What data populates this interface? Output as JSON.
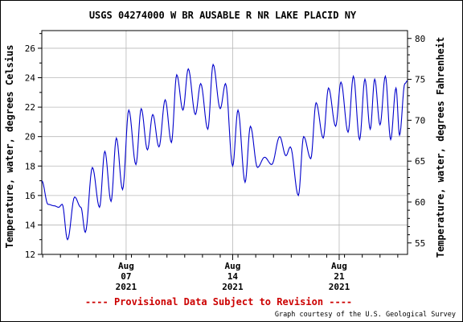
{
  "chart_data": {
    "type": "line",
    "title": "USGS 04274000 W BR AUSABLE R NR LAKE PLACID NY",
    "ylabel_left": "Temperature, water, degrees Celsius",
    "ylabel_right": "Temperature, water, degrees Fahrenheit",
    "ylim": [
      12,
      27.2
    ],
    "yticks_left": [
      "12",
      "14",
      "16",
      "18",
      "20",
      "22",
      "24",
      "26"
    ],
    "yticks_right": [
      "55",
      "60",
      "65",
      "70",
      "75",
      "80"
    ],
    "x_range_days": [
      0,
      20.6
    ],
    "x_ticks": [
      {
        "day": 4.75,
        "month": "Aug",
        "date": "07",
        "year": "2021"
      },
      {
        "day": 10.75,
        "month": "Aug",
        "date": "14",
        "year": "2021"
      },
      {
        "day": 16.75,
        "month": "Aug",
        "date": "21",
        "year": "2021"
      }
    ],
    "line_color": "#0000cc",
    "series": [
      {
        "values_daily_extremes": [
          [
            0.0,
            17.0
          ],
          [
            0.35,
            15.4
          ],
          [
            0.7,
            15.3
          ],
          [
            0.95,
            15.2
          ],
          [
            1.15,
            15.4
          ],
          [
            1.45,
            13.0
          ],
          [
            1.85,
            15.9
          ],
          [
            2.2,
            15.2
          ],
          [
            2.45,
            13.5
          ],
          [
            2.85,
            17.9
          ],
          [
            3.25,
            15.2
          ],
          [
            3.55,
            19.0
          ],
          [
            3.9,
            15.6
          ],
          [
            4.2,
            19.9
          ],
          [
            4.55,
            16.4
          ],
          [
            4.9,
            21.8
          ],
          [
            5.3,
            18.1
          ],
          [
            5.6,
            21.9
          ],
          [
            5.95,
            19.1
          ],
          [
            6.25,
            21.5
          ],
          [
            6.6,
            19.3
          ],
          [
            6.95,
            22.5
          ],
          [
            7.3,
            19.6
          ],
          [
            7.6,
            24.2
          ],
          [
            7.95,
            21.8
          ],
          [
            8.25,
            24.6
          ],
          [
            8.65,
            21.5
          ],
          [
            8.95,
            23.6
          ],
          [
            9.35,
            20.5
          ],
          [
            9.65,
            24.9
          ],
          [
            10.05,
            21.9
          ],
          [
            10.35,
            23.6
          ],
          [
            10.75,
            18.0
          ],
          [
            11.05,
            21.8
          ],
          [
            11.45,
            16.9
          ],
          [
            11.75,
            20.7
          ],
          [
            12.15,
            17.9
          ],
          [
            12.55,
            18.6
          ],
          [
            12.95,
            18.1
          ],
          [
            13.4,
            20.0
          ],
          [
            13.75,
            18.7
          ],
          [
            14.0,
            19.3
          ],
          [
            14.45,
            16.0
          ],
          [
            14.75,
            20.0
          ],
          [
            15.15,
            18.5
          ],
          [
            15.45,
            22.3
          ],
          [
            15.85,
            19.9
          ],
          [
            16.15,
            23.3
          ],
          [
            16.55,
            20.7
          ],
          [
            16.85,
            23.7
          ],
          [
            17.25,
            20.3
          ],
          [
            17.55,
            24.1
          ],
          [
            17.9,
            19.8
          ],
          [
            18.2,
            23.9
          ],
          [
            18.5,
            20.5
          ],
          [
            18.75,
            23.9
          ],
          [
            19.05,
            20.8
          ],
          [
            19.35,
            24.1
          ],
          [
            19.65,
            19.8
          ],
          [
            19.95,
            23.3
          ],
          [
            20.15,
            20.1
          ],
          [
            20.45,
            23.6
          ],
          [
            20.6,
            23.8
          ]
        ]
      }
    ],
    "footer_provisional": "---- Provisional Data Subject to Revision ----",
    "footer_credit": "Graph courtesy of the U.S. Geological Survey"
  }
}
